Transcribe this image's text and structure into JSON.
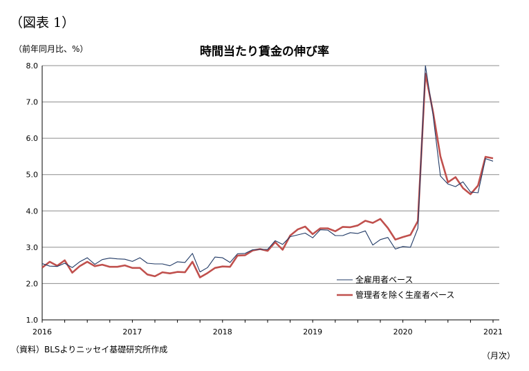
{
  "figure_label": "（図表 1）",
  "unit_label": "（前年同月比、%）",
  "source_note": "（資料）BLSよりニッセイ基礎研究所作成",
  "x_unit_label": "（月次）",
  "chart_data": {
    "type": "line",
    "title": "時間当たり賃金の伸び率",
    "xlabel": "",
    "ylabel": "",
    "ylim": [
      1.0,
      8.0
    ],
    "yticks": [
      "1.0",
      "2.0",
      "3.0",
      "4.0",
      "5.0",
      "6.0",
      "7.0",
      "8.0"
    ],
    "xticks": [
      "2016",
      "2017",
      "2018",
      "2019",
      "2020",
      "2021"
    ],
    "x_start": "2016-01",
    "grid": "horizontal",
    "legend_position": "bottom-right",
    "series": [
      {
        "name": "全雇用者ベース",
        "color": "#1f3864",
        "values": [
          2.55,
          2.48,
          2.47,
          2.56,
          2.44,
          2.6,
          2.71,
          2.53,
          2.66,
          2.7,
          2.68,
          2.67,
          2.61,
          2.71,
          2.56,
          2.54,
          2.54,
          2.49,
          2.6,
          2.58,
          2.83,
          2.32,
          2.44,
          2.73,
          2.71,
          2.58,
          2.82,
          2.83,
          2.93,
          2.94,
          2.94,
          3.18,
          3.08,
          3.29,
          3.34,
          3.39,
          3.26,
          3.48,
          3.47,
          3.32,
          3.32,
          3.4,
          3.38,
          3.45,
          3.06,
          3.21,
          3.27,
          2.95,
          3.02,
          3.0,
          3.52,
          8.0,
          6.66,
          4.96,
          4.74,
          4.67,
          4.8,
          4.52,
          4.5,
          5.44,
          5.37
        ]
      },
      {
        "name": "管理者を除く生産者ベース",
        "color": "#c0504d",
        "values": [
          2.44,
          2.6,
          2.49,
          2.64,
          2.3,
          2.48,
          2.6,
          2.48,
          2.52,
          2.46,
          2.46,
          2.5,
          2.43,
          2.43,
          2.25,
          2.2,
          2.31,
          2.28,
          2.32,
          2.31,
          2.6,
          2.17,
          2.29,
          2.43,
          2.47,
          2.46,
          2.77,
          2.78,
          2.91,
          2.95,
          2.9,
          3.14,
          2.93,
          3.32,
          3.49,
          3.57,
          3.36,
          3.52,
          3.52,
          3.44,
          3.56,
          3.55,
          3.6,
          3.73,
          3.67,
          3.78,
          3.53,
          3.21,
          3.28,
          3.34,
          3.72,
          7.78,
          6.74,
          5.5,
          4.79,
          4.93,
          4.63,
          4.46,
          4.7,
          5.49,
          5.45
        ]
      }
    ]
  }
}
